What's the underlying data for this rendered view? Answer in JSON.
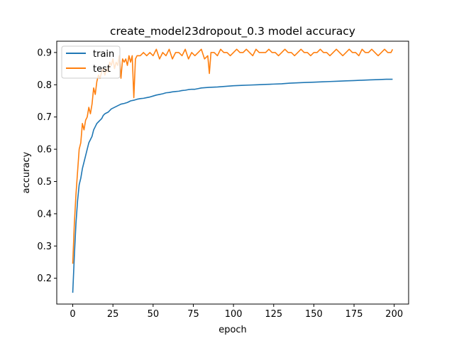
{
  "chart_data": {
    "type": "line",
    "title": "create_model23dropout_0.3 model accuracy",
    "xlabel": "epoch",
    "ylabel": "accuracy",
    "xlim": [
      -9.95,
      208.95
    ],
    "ylim": [
      0.12,
      0.935
    ],
    "xticks": [
      0,
      25,
      50,
      75,
      100,
      125,
      150,
      175,
      200
    ],
    "yticks": [
      0.2,
      0.3,
      0.4,
      0.5,
      0.6,
      0.7,
      0.8,
      0.9
    ],
    "xtick_labels": [
      "0",
      "25",
      "50",
      "75",
      "100",
      "125",
      "150",
      "175",
      "200"
    ],
    "ytick_labels": [
      "0.2",
      "0.3",
      "0.4",
      "0.5",
      "0.6",
      "0.7",
      "0.8",
      "0.9"
    ],
    "grid": false,
    "legend_position": "upper-left",
    "series": [
      {
        "name": "train",
        "color": "#1f77b4",
        "x": [
          0,
          1,
          2,
          3,
          4,
          5,
          6,
          7,
          8,
          9,
          10,
          11,
          12,
          13,
          14,
          15,
          16,
          17,
          18,
          19,
          20,
          22,
          24,
          26,
          28,
          30,
          32,
          34,
          36,
          38,
          40,
          42,
          44,
          46,
          48,
          50,
          52,
          54,
          56,
          58,
          60,
          62,
          64,
          66,
          68,
          70,
          72,
          74,
          76,
          78,
          80,
          85,
          90,
          95,
          100,
          105,
          110,
          115,
          120,
          125,
          130,
          135,
          140,
          145,
          150,
          155,
          160,
          165,
          170,
          175,
          180,
          185,
          190,
          195,
          199
        ],
        "y": [
          0.155,
          0.27,
          0.37,
          0.44,
          0.49,
          0.51,
          0.54,
          0.56,
          0.58,
          0.6,
          0.62,
          0.63,
          0.64,
          0.66,
          0.67,
          0.68,
          0.685,
          0.69,
          0.695,
          0.705,
          0.71,
          0.715,
          0.725,
          0.73,
          0.735,
          0.74,
          0.742,
          0.745,
          0.75,
          0.752,
          0.755,
          0.757,
          0.758,
          0.76,
          0.762,
          0.765,
          0.768,
          0.77,
          0.772,
          0.775,
          0.776,
          0.778,
          0.779,
          0.78,
          0.782,
          0.783,
          0.785,
          0.786,
          0.786,
          0.788,
          0.79,
          0.792,
          0.793,
          0.795,
          0.797,
          0.798,
          0.799,
          0.8,
          0.801,
          0.802,
          0.803,
          0.805,
          0.806,
          0.807,
          0.808,
          0.809,
          0.81,
          0.811,
          0.812,
          0.813,
          0.814,
          0.815,
          0.816,
          0.817,
          0.817
        ]
      },
      {
        "name": "test",
        "color": "#ff7f0e",
        "x": [
          0,
          1,
          2,
          3,
          4,
          5,
          6,
          7,
          8,
          9,
          10,
          11,
          12,
          13,
          14,
          15,
          16,
          17,
          18,
          19,
          20,
          21,
          22,
          23,
          24,
          25,
          26,
          27,
          28,
          29,
          30,
          31,
          32,
          33,
          34,
          35,
          36,
          37,
          38,
          39,
          40,
          42,
          44,
          46,
          48,
          50,
          52,
          54,
          56,
          58,
          60,
          62,
          64,
          66,
          68,
          70,
          72,
          74,
          76,
          78,
          80,
          82,
          84,
          85,
          86,
          88,
          90,
          92,
          94,
          96,
          98,
          100,
          102,
          104,
          106,
          108,
          110,
          112,
          114,
          116,
          118,
          120,
          122,
          124,
          126,
          128,
          130,
          132,
          134,
          136,
          138,
          140,
          142,
          144,
          146,
          148,
          150,
          152,
          154,
          156,
          158,
          160,
          162,
          164,
          166,
          168,
          170,
          172,
          174,
          176,
          178,
          180,
          182,
          184,
          186,
          188,
          190,
          192,
          194,
          196,
          198,
          199
        ],
        "y": [
          0.245,
          0.37,
          0.46,
          0.53,
          0.6,
          0.62,
          0.68,
          0.66,
          0.69,
          0.7,
          0.73,
          0.71,
          0.74,
          0.79,
          0.77,
          0.81,
          0.83,
          0.82,
          0.84,
          0.85,
          0.83,
          0.85,
          0.84,
          0.87,
          0.86,
          0.88,
          0.85,
          0.87,
          0.86,
          0.89,
          0.82,
          0.88,
          0.87,
          0.88,
          0.86,
          0.89,
          0.87,
          0.89,
          0.76,
          0.88,
          0.89,
          0.89,
          0.9,
          0.89,
          0.9,
          0.89,
          0.91,
          0.88,
          0.9,
          0.89,
          0.91,
          0.88,
          0.9,
          0.9,
          0.89,
          0.91,
          0.88,
          0.9,
          0.89,
          0.9,
          0.91,
          0.88,
          0.89,
          0.835,
          0.9,
          0.9,
          0.89,
          0.91,
          0.9,
          0.9,
          0.89,
          0.9,
          0.91,
          0.9,
          0.9,
          0.91,
          0.9,
          0.89,
          0.91,
          0.9,
          0.9,
          0.9,
          0.91,
          0.9,
          0.9,
          0.89,
          0.9,
          0.91,
          0.9,
          0.9,
          0.89,
          0.9,
          0.91,
          0.9,
          0.9,
          0.89,
          0.9,
          0.9,
          0.91,
          0.9,
          0.9,
          0.89,
          0.9,
          0.91,
          0.9,
          0.89,
          0.9,
          0.91,
          0.9,
          0.9,
          0.89,
          0.91,
          0.9,
          0.9,
          0.91,
          0.9,
          0.89,
          0.9,
          0.91,
          0.9,
          0.9,
          0.91
        ]
      }
    ]
  }
}
